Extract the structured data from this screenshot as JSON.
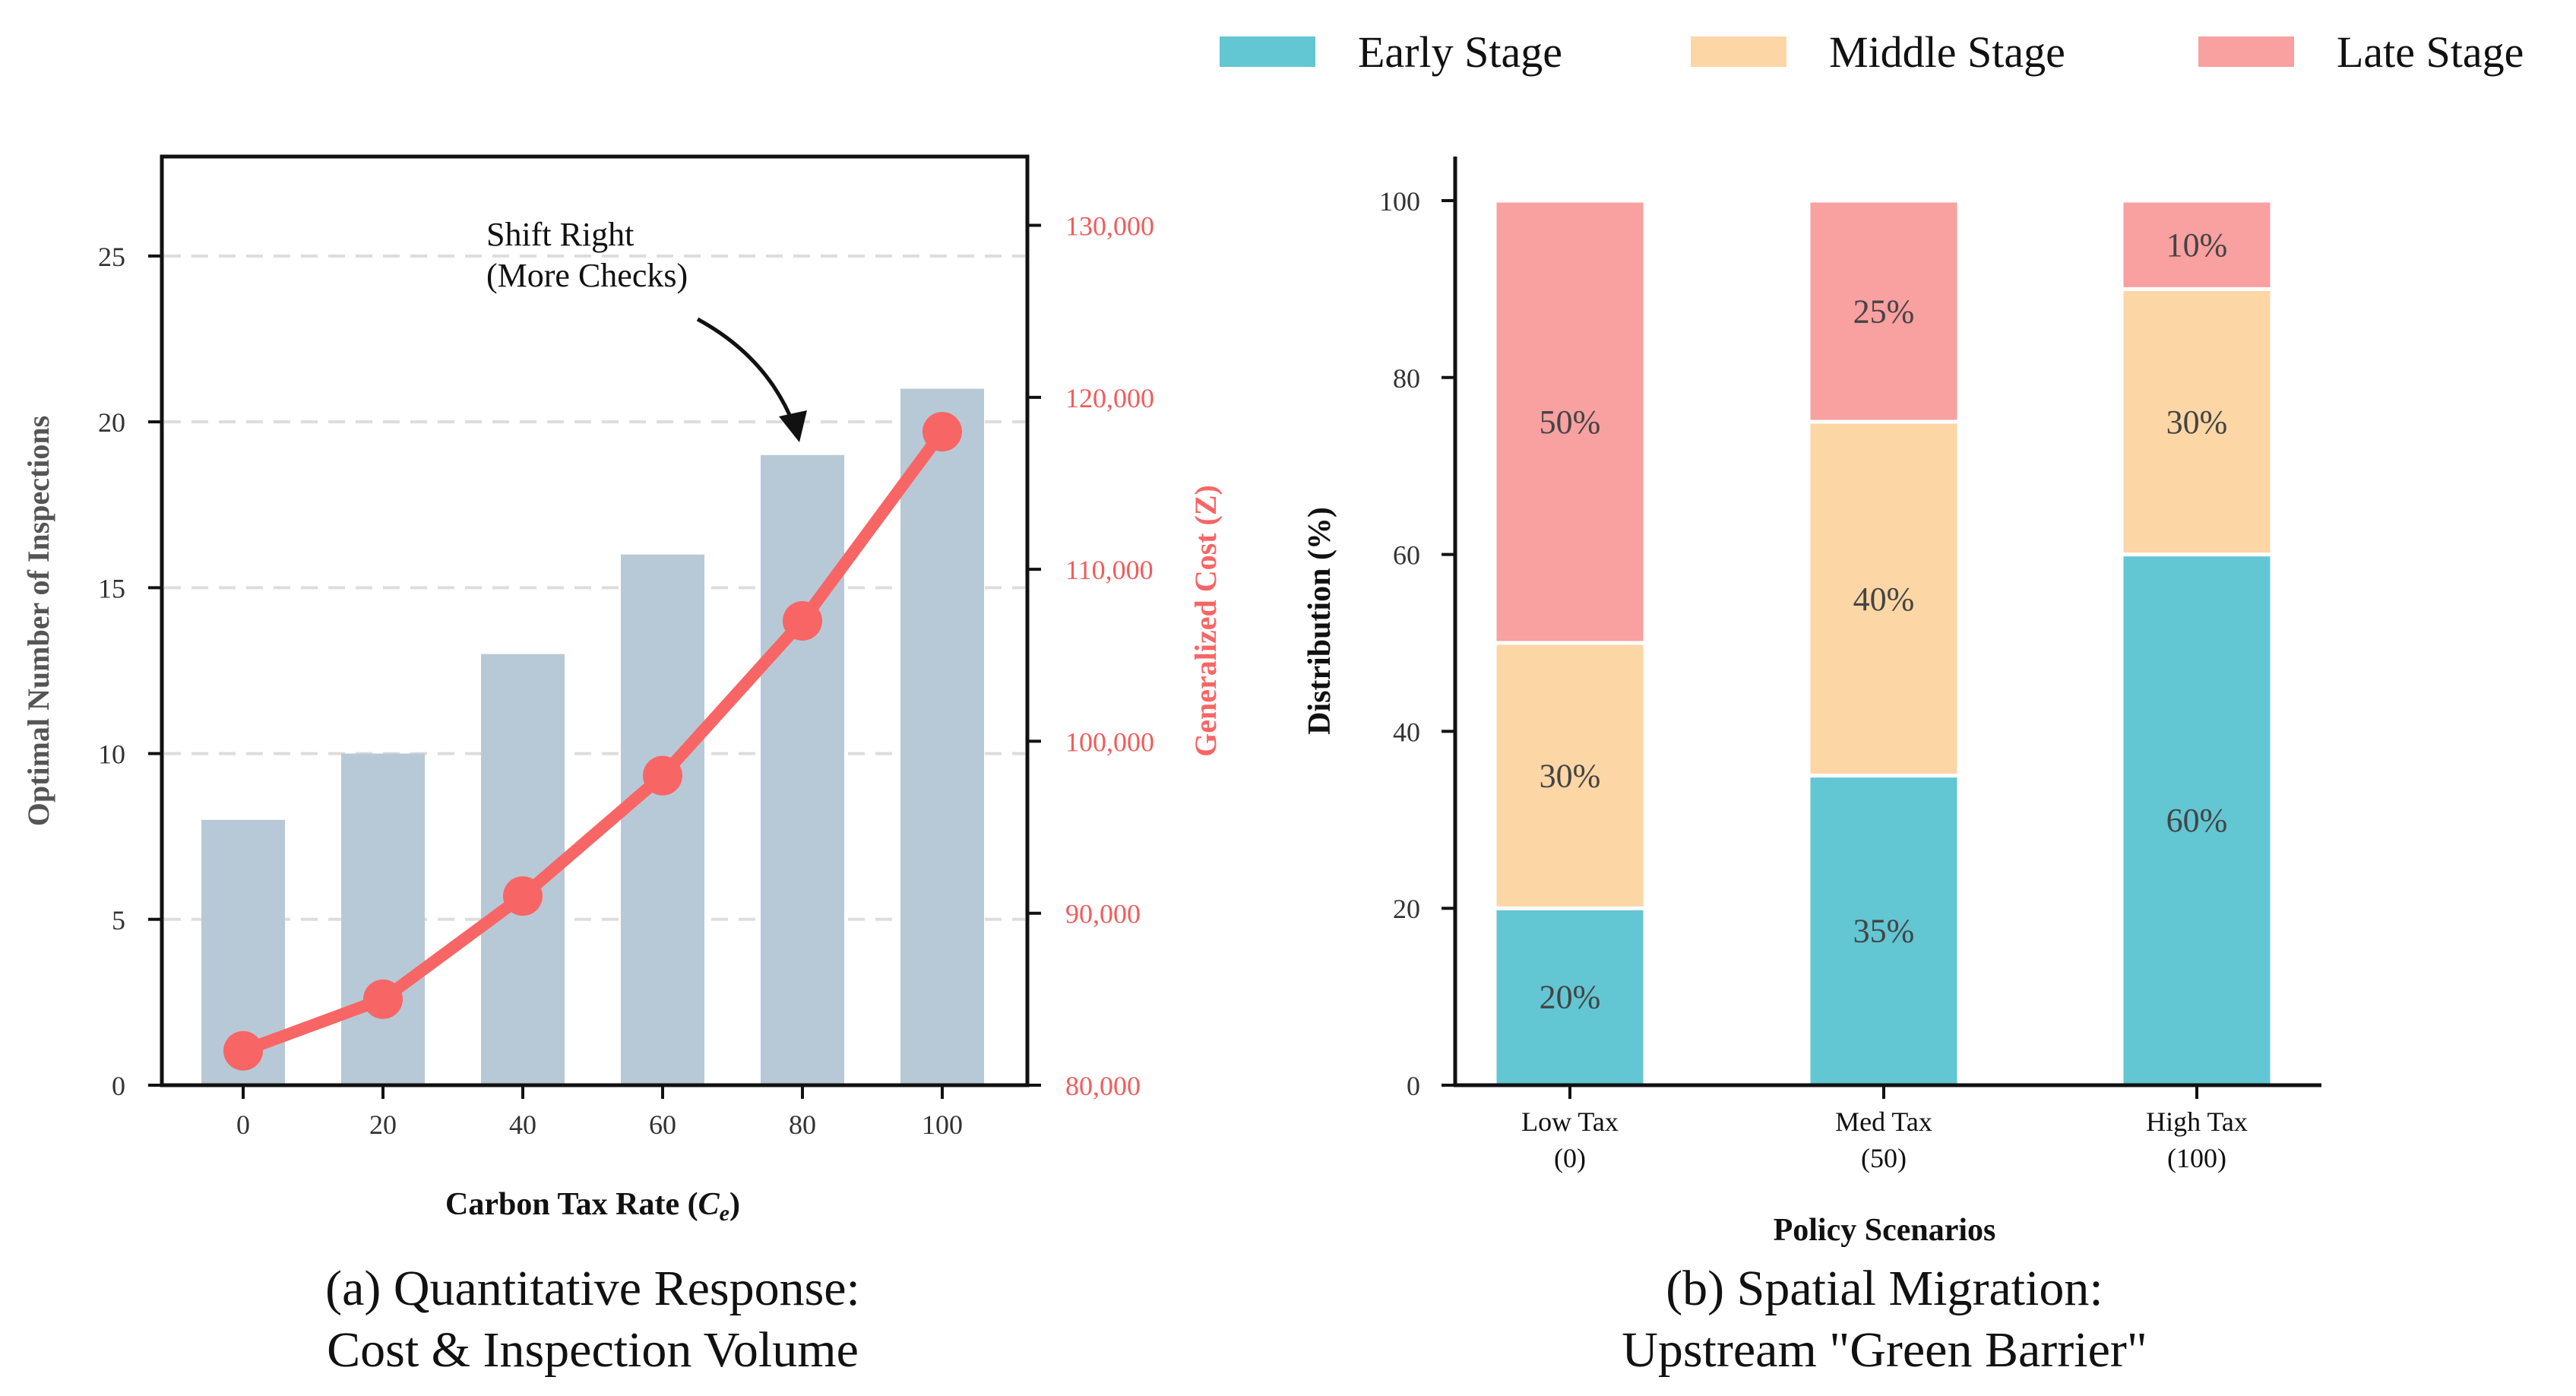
{
  "chart_data": [
    {
      "type": "bar+line",
      "title": "(a) Quantitative Response:",
      "subtitle": "Cost & Inspection Volume",
      "xlabel": "Carbon Tax Rate",
      "xlabel_symbol": "C",
      "xlabel_symbol_sub": "e",
      "categories": [
        "0",
        "20",
        "40",
        "60",
        "80",
        "100"
      ],
      "bars": {
        "name": "Optimal Number of Inspections",
        "values": [
          8,
          10,
          13,
          16,
          19,
          21
        ],
        "color": "#b7c9d6"
      },
      "line": {
        "name": "Generalized Cost (Z)",
        "values": [
          82000,
          85000,
          91000,
          98000,
          107000,
          118000
        ],
        "color": "#f86565"
      },
      "ylabel_left": "Optimal Number of Inspections",
      "ylim_left": [
        0,
        28
      ],
      "yticks_left": [
        "0",
        "5",
        "10",
        "15",
        "20",
        "25"
      ],
      "ylabel_right": "Generalized Cost (Z)",
      "ylim_right": [
        80000,
        134000
      ],
      "yticks_right": [
        "80,000",
        "90,000",
        "100,000",
        "110,000",
        "120,000",
        "130,000"
      ],
      "grid": "horizontal dashed",
      "annotation": {
        "line1": "Shift Right",
        "line2": "(More Checks)",
        "target_category": "80"
      }
    },
    {
      "type": "stacked-bar",
      "title": "(b) Spatial Migration:",
      "subtitle": "Upstream \"Green Barrier\"",
      "xlabel": "Policy Scenarios",
      "ylabel": "Distribution (%)",
      "ylim": [
        0,
        100
      ],
      "yticks": [
        "0",
        "20",
        "40",
        "60",
        "80",
        "100"
      ],
      "categories": [
        {
          "line1": "Low Tax",
          "line2": "(0)"
        },
        {
          "line1": "Med Tax",
          "line2": "(50)"
        },
        {
          "line1": "High Tax",
          "line2": "(100)"
        }
      ],
      "series": [
        {
          "name": "Early Stage",
          "values": [
            20,
            35,
            60
          ],
          "labels": [
            "20%",
            "35%",
            "60%"
          ],
          "color": "#62c6d3"
        },
        {
          "name": "Middle Stage",
          "values": [
            30,
            40,
            30
          ],
          "labels": [
            "30%",
            "40%",
            "30%"
          ],
          "color": "#fdd6a6"
        },
        {
          "name": "Late Stage",
          "values": [
            50,
            25,
            10
          ],
          "labels": [
            "50%",
            "25%",
            "10%"
          ],
          "color": "#f9a0a0"
        }
      ],
      "legend": "top"
    }
  ]
}
